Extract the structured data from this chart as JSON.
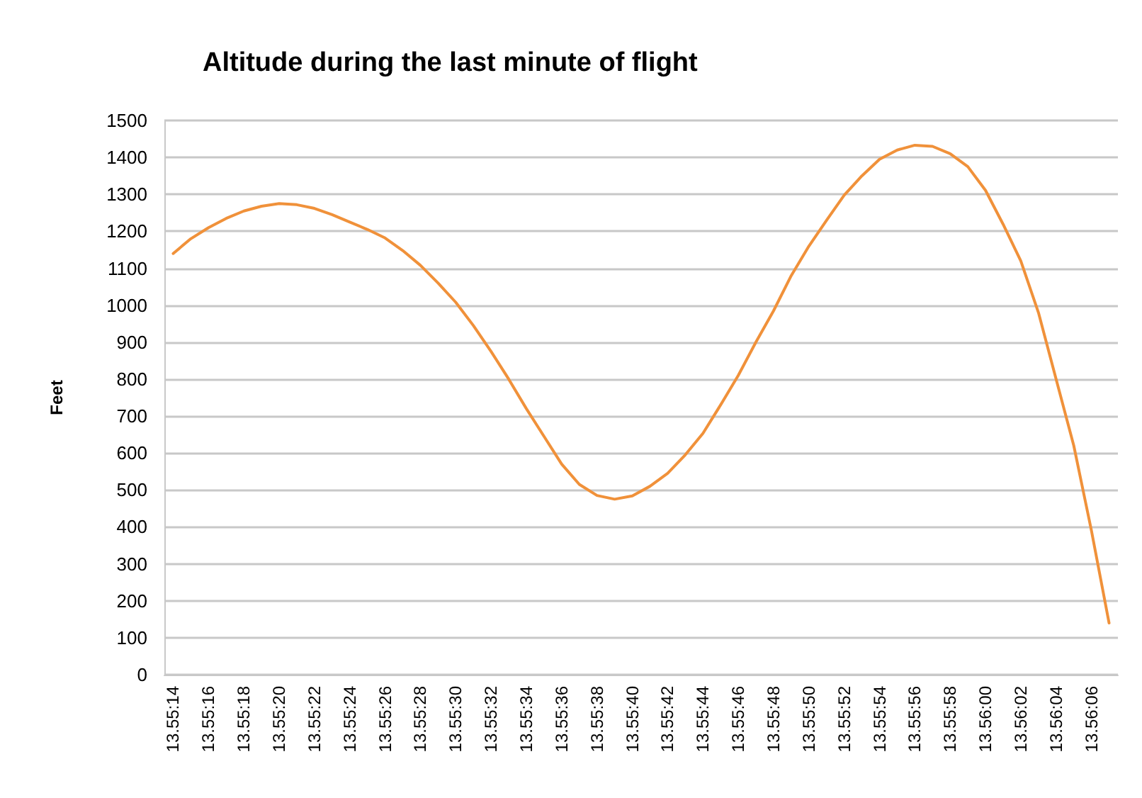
{
  "chart_data": {
    "type": "line",
    "title": "Altitude during the last minute of flight",
    "ylabel": "Feet",
    "categories": [
      "13.55:14",
      null,
      "13.55:16",
      null,
      "13.55:18",
      null,
      "13.55:20",
      null,
      "13.55:22",
      null,
      "13.55:24",
      null,
      "13.55:26",
      null,
      "13.55:28",
      null,
      "13.55:30",
      null,
      "13.55:32",
      null,
      "13.55:34",
      null,
      "13.55:36",
      null,
      "13.55:38",
      null,
      "13.55:40",
      null,
      "13.55:42",
      null,
      "13.55:44",
      null,
      "13.55:46",
      null,
      "13.55:48",
      null,
      "13.55:50",
      null,
      "13.55:52",
      null,
      "13.55:54",
      null,
      "13.55:56",
      null,
      "13.55:58",
      null,
      "13.56:00",
      null,
      "13.56:02",
      null,
      "13.56:04",
      null,
      "13.56:06",
      null
    ],
    "series": [
      {
        "color": "#f0913a",
        "values": [
          1140,
          1180,
          1210,
          1235,
          1255,
          1268,
          1275,
          1272,
          1262,
          1245,
          1225,
          1205,
          1182,
          1148,
          1108,
          1060,
          1008,
          945,
          875,
          800,
          720,
          645,
          570,
          515,
          485,
          475,
          484,
          510,
          545,
          595,
          653,
          730,
          810,
          900,
          985,
          1080,
          1160,
          1230,
          1298,
          1350,
          1395,
          1420,
          1433,
          1430,
          1410,
          1375,
          1311,
          1219,
          1120,
          980,
          800,
          620,
          390,
          140
        ]
      }
    ],
    "ylim": [
      0,
      1500
    ],
    "yticks": [
      0,
      100,
      200,
      300,
      400,
      500,
      600,
      700,
      800,
      900,
      1000,
      1100,
      1200,
      1300,
      1400,
      1500
    ],
    "grid": "y",
    "marker": "none",
    "line_style": "solid"
  }
}
